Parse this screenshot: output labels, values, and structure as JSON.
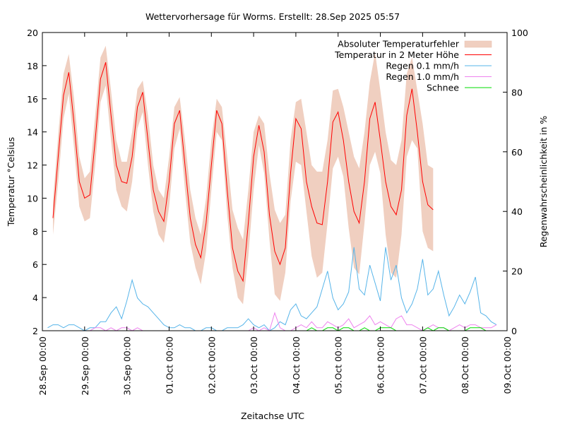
{
  "chart_data": {
    "type": "line",
    "title": "Wettervorhersage für Worms. Erstellt: 28.Sep 2025 05:57",
    "xlabel": "Zeitachse UTC",
    "ylabel": "Temperatur °Celsius",
    "y2label": "Regenwahrscheinlichkeit in %",
    "xlim_days": [
      0,
      11
    ],
    "ylim": [
      2,
      20
    ],
    "y2lim": [
      0,
      100
    ],
    "x_ticks": [
      "28.Sep 00:00",
      "29.Sep 00:00",
      "30.Sep 00:00",
      "01.Oct 00:00",
      "02.Oct 00:00",
      "03.Oct 00:00",
      "04.Oct 00:00",
      "05.Oct 00:00",
      "06.Oct 00:00",
      "07.Oct 00:00",
      "08.Oct 00:00",
      "09.Oct 00:00"
    ],
    "y_ticks": [
      "2",
      "4",
      "6",
      "8",
      "10",
      "12",
      "14",
      "16",
      "18",
      "20"
    ],
    "y2_ticks": [
      "0",
      "20",
      "40",
      "60",
      "80",
      "100"
    ],
    "legend_position": "top-right",
    "legend": [
      {
        "label": "Absoluter Temperaturfehler",
        "kind": "band",
        "color": "#f0cfc0"
      },
      {
        "label": "Temperatur in 2 Meter Höhe",
        "kind": "line",
        "color": "#ff0000"
      },
      {
        "label": "Regen 0.1 mm/h",
        "kind": "line",
        "color": "#56b4e9"
      },
      {
        "label": "Regen 1.0 mm/h",
        "kind": "line",
        "color": "#ee82ee"
      },
      {
        "label": "Schnee",
        "kind": "line",
        "color": "#00dd00"
      }
    ],
    "x_hours_step": 3,
    "x_hours_start": 6,
    "temperature": [
      8.8,
      12.5,
      16.2,
      17.6,
      14.5,
      11.0,
      10.0,
      10.2,
      13.5,
      17.2,
      18.2,
      15.0,
      12.0,
      11.0,
      10.9,
      12.5,
      15.5,
      16.4,
      13.5,
      10.5,
      9.2,
      8.6,
      11.0,
      14.5,
      15.3,
      12.0,
      8.8,
      7.2,
      6.4,
      8.5,
      12.0,
      15.3,
      14.5,
      10.5,
      7.0,
      5.6,
      5.0,
      8.5,
      12.5,
      14.4,
      12.8,
      9.0,
      6.8,
      6.0,
      7.0,
      11.5,
      14.8,
      14.2,
      11.0,
      9.5,
      8.5,
      8.4,
      11.0,
      14.6,
      15.2,
      13.5,
      11.0,
      9.2,
      8.5,
      11.0,
      14.8,
      15.8,
      13.5,
      11.0,
      9.5,
      9.0,
      10.5,
      15.0,
      16.6,
      14.0,
      11.0,
      9.6,
      9.3
    ],
    "temp_lower": [
      7.8,
      11.0,
      14.8,
      16.3,
      13.0,
      9.5,
      8.6,
      8.8,
      12.0,
      15.8,
      16.8,
      13.5,
      10.5,
      9.5,
      9.2,
      11.0,
      14.2,
      15.2,
      12.0,
      9.2,
      7.8,
      7.3,
      9.5,
      13.0,
      14.2,
      10.5,
      7.3,
      5.8,
      4.8,
      6.8,
      10.5,
      14.0,
      13.5,
      9.0,
      5.8,
      4.0,
      3.6,
      6.5,
      10.5,
      13.2,
      11.5,
      7.5,
      4.2,
      3.8,
      5.5,
      9.8,
      12.2,
      12.0,
      9.2,
      6.5,
      5.2,
      5.5,
      8.5,
      11.8,
      12.5,
      11.3,
      8.2,
      5.8,
      5.4,
      8.5,
      12.0,
      12.8,
      11.5,
      7.8,
      5.5,
      5.2,
      7.8,
      12.5,
      13.5,
      13.0,
      8.0,
      7.0,
      6.8
    ],
    "temp_upper": [
      9.8,
      13.8,
      17.5,
      18.7,
      16.0,
      12.5,
      11.2,
      11.6,
      15.0,
      18.5,
      19.2,
      16.5,
      13.5,
      12.2,
      12.2,
      14.0,
      16.6,
      17.1,
      15.0,
      12.0,
      10.5,
      10.0,
      12.5,
      15.5,
      16.1,
      13.5,
      10.5,
      8.8,
      7.8,
      10.0,
      13.5,
      16.0,
      15.5,
      12.5,
      9.3,
      8.2,
      7.5,
      10.5,
      14.0,
      15.0,
      14.5,
      11.5,
      9.3,
      8.5,
      9.0,
      13.5,
      15.8,
      16.0,
      14.0,
      12.0,
      11.6,
      11.6,
      13.5,
      16.5,
      16.6,
      15.5,
      14.0,
      12.5,
      11.8,
      14.0,
      17.0,
      18.8,
      16.5,
      14.0,
      12.3,
      12.0,
      13.5,
      17.5,
      18.5,
      16.5,
      14.5,
      12.0,
      11.8
    ],
    "rain_01": [
      1,
      2,
      2,
      1,
      2,
      2,
      1,
      0,
      1,
      1,
      3,
      3,
      6,
      8,
      4,
      10,
      17,
      11,
      9,
      8,
      6,
      4,
      2,
      1,
      1,
      2,
      1,
      1,
      0,
      0,
      1,
      1,
      0,
      0,
      1,
      1,
      1,
      2,
      4,
      2,
      1,
      2,
      0,
      1,
      3,
      2,
      7,
      9,
      5,
      4,
      6,
      8,
      14,
      20,
      11,
      7,
      9,
      13,
      28,
      14,
      12,
      22,
      16,
      10,
      28,
      17,
      22,
      11,
      6,
      9,
      14,
      24,
      12,
      14,
      20,
      12,
      5,
      8,
      12,
      9,
      13,
      18,
      6,
      5,
      3,
      2
    ],
    "rain_10": [
      0,
      0,
      0,
      0,
      0,
      0,
      0,
      0,
      0,
      1,
      1,
      0,
      1,
      0,
      1,
      1,
      0,
      1,
      0,
      0,
      0,
      0,
      0,
      0,
      0,
      0,
      0,
      0,
      0,
      0,
      0,
      0,
      0,
      0,
      0,
      0,
      0,
      0,
      0,
      1,
      0,
      1,
      0,
      6,
      1,
      0,
      0,
      1,
      2,
      1,
      3,
      1,
      1,
      3,
      2,
      1,
      2,
      4,
      1,
      2,
      3,
      5,
      2,
      3,
      2,
      1,
      4,
      5,
      2,
      2,
      1,
      0,
      1,
      2,
      1,
      1,
      0,
      1,
      2,
      1,
      2,
      2,
      1,
      1,
      1,
      2
    ],
    "snow": [
      0,
      0,
      0,
      0,
      0,
      0,
      0,
      0,
      0,
      0,
      0,
      0,
      0,
      0,
      0,
      0,
      0,
      0,
      0,
      0,
      0,
      0,
      0,
      0,
      0,
      0,
      0,
      0,
      0,
      0,
      0,
      0,
      0,
      0,
      0,
      0,
      0,
      0,
      0,
      0,
      0,
      0,
      0,
      0,
      0,
      0,
      0,
      0,
      0,
      0,
      1,
      0,
      0,
      1,
      1,
      0,
      1,
      1,
      0,
      0,
      1,
      0,
      0,
      1,
      1,
      1,
      0,
      0,
      0,
      0,
      0,
      0,
      1,
      0,
      1,
      1,
      0,
      0,
      0,
      0,
      1,
      1,
      1,
      0,
      0,
      0
    ],
    "rain_x_hours_start": 3,
    "rain_x_hours_step": 3
  }
}
